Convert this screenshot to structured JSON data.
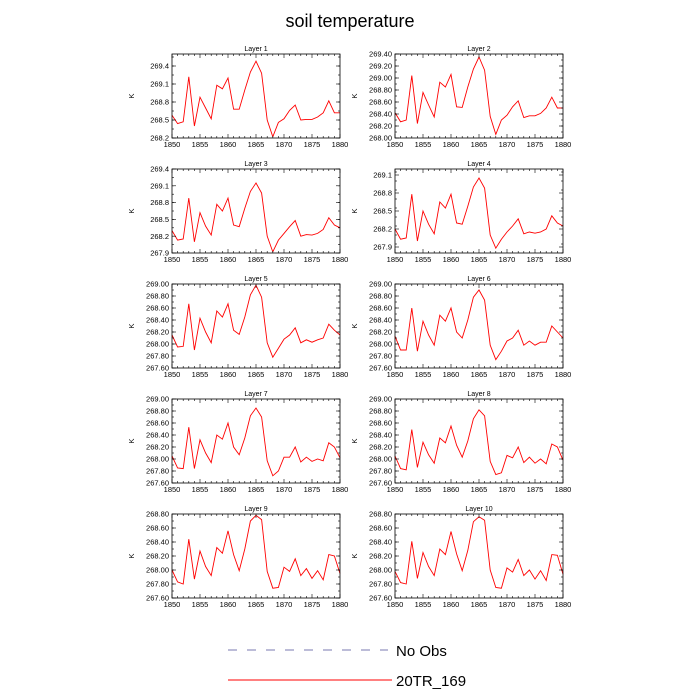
{
  "title": "soil temperature",
  "colors": {
    "model": "#ff0000",
    "obs": "#7a78b0",
    "axis": "#000000"
  },
  "legend": [
    {
      "label": "No Obs",
      "style": "dashed",
      "color": "#7a78b0"
    },
    {
      "label": "20TR_169",
      "style": "solid",
      "color": "#ff0000"
    }
  ],
  "chart_data": {
    "type": "line",
    "x": [
      1850,
      1851,
      1852,
      1853,
      1854,
      1855,
      1856,
      1857,
      1858,
      1859,
      1860,
      1861,
      1862,
      1863,
      1864,
      1865,
      1866,
      1867,
      1868,
      1869,
      1870,
      1871,
      1872,
      1873,
      1874,
      1875,
      1876,
      1877,
      1878,
      1879,
      1880
    ],
    "xlim": [
      1850,
      1880
    ],
    "xticks": [
      1850,
      1855,
      1860,
      1865,
      1870,
      1875,
      1880
    ],
    "xtick_labels": [
      "1850",
      "1855",
      "1860",
      "1865",
      "1870",
      "1875",
      "1880"
    ],
    "panels": [
      {
        "title": "Layer 1",
        "ylabel": "K",
        "ylim": [
          268.2,
          269.6
        ],
        "yticks": [
          268.2,
          268.5,
          268.8,
          269.1,
          269.4
        ],
        "ytick_labels": [
          "268.2",
          "268.5",
          "268.8",
          "269.1",
          "269.4"
        ],
        "values": [
          268.58,
          268.44,
          268.47,
          269.22,
          268.4,
          268.88,
          268.7,
          268.52,
          269.08,
          269.02,
          269.2,
          268.68,
          268.68,
          269.0,
          269.3,
          269.48,
          269.28,
          268.5,
          268.22,
          268.46,
          268.52,
          268.66,
          268.75,
          268.5,
          268.51,
          268.51,
          268.55,
          268.62,
          268.82,
          268.62,
          268.62
        ]
      },
      {
        "title": "Layer 2",
        "ylabel": "K",
        "ylim": [
          268.0,
          269.4
        ],
        "yticks": [
          268.0,
          268.2,
          268.4,
          268.6,
          268.8,
          269.0,
          269.2,
          269.4
        ],
        "ytick_labels": [
          "268.00",
          "268.20",
          "268.40",
          "268.60",
          "268.80",
          "269.00",
          "269.20",
          "269.40"
        ],
        "values": [
          268.42,
          268.27,
          268.3,
          269.04,
          268.24,
          268.76,
          268.55,
          268.35,
          268.93,
          268.85,
          269.06,
          268.52,
          268.51,
          268.85,
          269.15,
          269.35,
          269.13,
          268.36,
          268.06,
          268.3,
          268.38,
          268.52,
          268.62,
          268.34,
          268.37,
          268.37,
          268.41,
          268.5,
          268.68,
          268.5,
          268.5
        ]
      },
      {
        "title": "Layer 3",
        "ylabel": "K",
        "ylim": [
          267.9,
          269.4
        ],
        "yticks": [
          267.9,
          268.2,
          268.5,
          268.8,
          269.1,
          269.4
        ],
        "ytick_labels": [
          "267.9",
          "268.2",
          "268.5",
          "268.8",
          "269.1",
          "269.4"
        ],
        "values": [
          268.3,
          268.13,
          268.15,
          268.88,
          268.1,
          268.62,
          268.38,
          268.22,
          268.77,
          268.65,
          268.88,
          268.4,
          268.37,
          268.7,
          269.0,
          269.15,
          268.97,
          268.2,
          267.92,
          268.13,
          268.25,
          268.37,
          268.48,
          268.2,
          268.23,
          268.22,
          268.25,
          268.32,
          268.53,
          268.4,
          268.35
        ]
      },
      {
        "title": "Layer 4",
        "ylabel": "K",
        "ylim": [
          267.8,
          269.2
        ],
        "yticks": [
          267.9,
          268.2,
          268.5,
          268.8,
          269.1
        ],
        "ytick_labels": [
          "267.9",
          "268.2",
          "268.5",
          "268.8",
          "269.1"
        ],
        "values": [
          268.2,
          268.03,
          268.05,
          268.78,
          268.0,
          268.5,
          268.28,
          268.12,
          268.65,
          268.55,
          268.78,
          268.3,
          268.28,
          268.58,
          268.9,
          269.05,
          268.88,
          268.1,
          267.88,
          268.03,
          268.15,
          268.25,
          268.37,
          268.12,
          268.15,
          268.13,
          268.15,
          268.2,
          268.42,
          268.3,
          268.25
        ]
      },
      {
        "title": "Layer 5",
        "ylabel": "K",
        "ylim": [
          267.6,
          269.0
        ],
        "yticks": [
          267.6,
          267.8,
          268.0,
          268.2,
          268.4,
          268.6,
          268.8,
          269.0
        ],
        "ytick_labels": [
          "267.60",
          "267.80",
          "268.00",
          "268.20",
          "268.40",
          "268.60",
          "268.80",
          "269.00"
        ],
        "values": [
          268.15,
          267.95,
          267.96,
          268.67,
          267.9,
          268.43,
          268.2,
          268.02,
          268.55,
          268.45,
          268.67,
          268.23,
          268.16,
          268.45,
          268.82,
          268.98,
          268.78,
          268.02,
          267.78,
          267.93,
          268.08,
          268.15,
          268.27,
          268.02,
          268.07,
          268.03,
          268.07,
          268.1,
          268.33,
          268.23,
          268.15
        ]
      },
      {
        "title": "Layer 6",
        "ylabel": "K",
        "ylim": [
          267.6,
          269.0
        ],
        "yticks": [
          267.6,
          267.8,
          268.0,
          268.2,
          268.4,
          268.6,
          268.8,
          269.0
        ],
        "ytick_labels": [
          "267.60",
          "267.80",
          "268.00",
          "268.20",
          "268.40",
          "268.60",
          "268.80",
          "269.00"
        ],
        "values": [
          268.13,
          267.9,
          267.9,
          268.6,
          267.88,
          268.38,
          268.15,
          267.98,
          268.48,
          268.38,
          268.6,
          268.2,
          268.1,
          268.4,
          268.78,
          268.9,
          268.73,
          267.98,
          267.74,
          267.88,
          268.05,
          268.1,
          268.23,
          267.98,
          268.05,
          267.98,
          268.03,
          268.03,
          268.3,
          268.2,
          268.1
        ]
      },
      {
        "title": "Layer 7",
        "ylabel": "K",
        "ylim": [
          267.6,
          269.0
        ],
        "yticks": [
          267.6,
          267.8,
          268.0,
          268.2,
          268.4,
          268.6,
          268.8,
          269.0
        ],
        "ytick_labels": [
          "267.60",
          "267.80",
          "268.00",
          "268.20",
          "268.40",
          "268.60",
          "268.80",
          "269.00"
        ],
        "values": [
          268.05,
          267.85,
          267.84,
          268.53,
          267.84,
          268.32,
          268.1,
          267.94,
          268.4,
          268.33,
          268.6,
          268.2,
          268.07,
          268.35,
          268.72,
          268.85,
          268.7,
          267.97,
          267.72,
          267.8,
          268.03,
          268.03,
          268.2,
          267.95,
          268.03,
          267.96,
          268.0,
          267.97,
          268.27,
          268.2,
          268.02
        ]
      },
      {
        "title": "Layer 8",
        "ylabel": "K",
        "ylim": [
          267.6,
          269.0
        ],
        "yticks": [
          267.6,
          267.8,
          268.0,
          268.2,
          268.4,
          268.6,
          268.8,
          269.0
        ],
        "ytick_labels": [
          "267.60",
          "267.80",
          "268.00",
          "268.20",
          "268.40",
          "268.60",
          "268.80",
          "269.00"
        ],
        "values": [
          268.05,
          267.84,
          267.82,
          268.49,
          267.86,
          268.28,
          268.07,
          267.93,
          268.35,
          268.27,
          268.55,
          268.23,
          268.03,
          268.3,
          268.67,
          268.82,
          268.72,
          267.96,
          267.74,
          267.77,
          268.06,
          268.02,
          268.2,
          267.94,
          268.03,
          267.93,
          268.0,
          267.92,
          268.25,
          268.2,
          267.98
        ]
      },
      {
        "title": "Layer 9",
        "ylabel": "K",
        "ylim": [
          267.6,
          268.8
        ],
        "yticks": [
          267.6,
          267.8,
          268.0,
          268.2,
          268.4,
          268.6,
          268.8
        ],
        "ytick_labels": [
          "267.60",
          "267.80",
          "268.00",
          "268.20",
          "268.40",
          "268.60",
          "268.80"
        ],
        "values": [
          268.0,
          267.83,
          267.8,
          268.44,
          267.87,
          268.27,
          268.05,
          267.92,
          268.32,
          268.24,
          268.56,
          268.22,
          267.99,
          268.3,
          268.7,
          268.78,
          268.72,
          267.98,
          267.74,
          267.75,
          268.04,
          267.98,
          268.16,
          267.92,
          268.02,
          267.88,
          267.99,
          267.86,
          268.22,
          268.2,
          267.95
        ]
      },
      {
        "title": "Layer 10",
        "ylabel": "K",
        "ylim": [
          267.6,
          268.8
        ],
        "yticks": [
          267.6,
          267.8,
          268.0,
          268.2,
          268.4,
          268.6,
          268.8
        ],
        "ytick_labels": [
          "267.60",
          "267.80",
          "268.00",
          "268.20",
          "268.40",
          "268.60",
          "268.80"
        ],
        "values": [
          267.98,
          267.82,
          267.8,
          268.41,
          267.88,
          268.25,
          268.05,
          267.92,
          268.3,
          268.22,
          268.55,
          268.23,
          267.99,
          268.28,
          268.69,
          268.76,
          268.71,
          268.0,
          267.75,
          267.74,
          268.03,
          267.97,
          268.15,
          267.92,
          268.0,
          267.87,
          267.99,
          267.85,
          268.22,
          268.21,
          267.94
        ]
      }
    ]
  }
}
